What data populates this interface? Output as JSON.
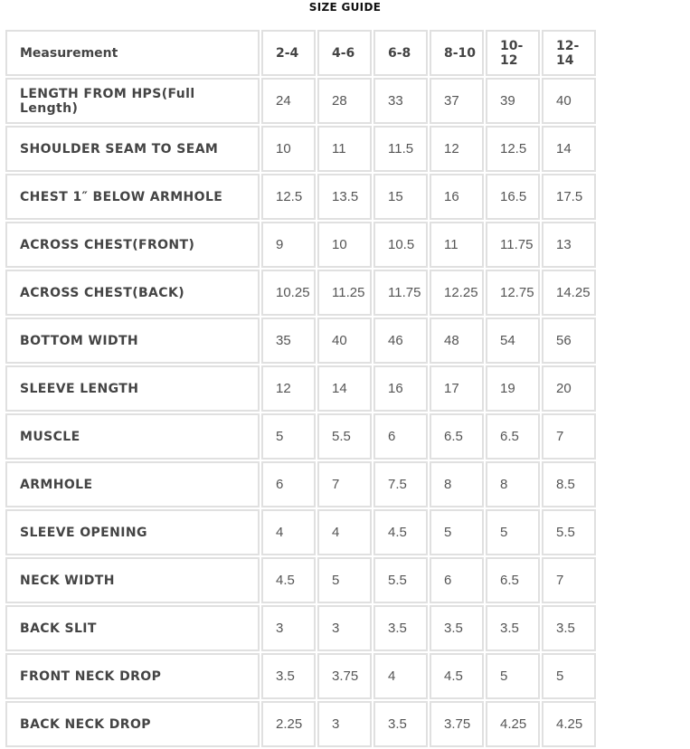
{
  "title": "SIZE GUIDE",
  "headers": [
    "Measurement",
    "2-4",
    "4-6",
    "6-8",
    "8-10",
    "10-12",
    "12-14"
  ],
  "rows": [
    {
      "label": "LENGTH FROM HPS(Full Length)",
      "values": [
        "24",
        "28",
        "33",
        "37",
        "39",
        "40"
      ]
    },
    {
      "label": "SHOULDER SEAM TO SEAM",
      "values": [
        "10",
        "11",
        "11.5",
        "12",
        "12.5",
        "14"
      ]
    },
    {
      "label": "CHEST 1″ BELOW ARMHOLE",
      "values": [
        "12.5",
        "13.5",
        "15",
        "16",
        "16.5",
        "17.5"
      ]
    },
    {
      "label": "ACROSS CHEST(FRONT)",
      "values": [
        "9",
        "10",
        "10.5",
        "11",
        "11.75",
        "13"
      ]
    },
    {
      "label": "ACROSS CHEST(BACK)",
      "values": [
        "10.25",
        "11.25",
        "11.75",
        "12.25",
        "12.75",
        "14.25"
      ]
    },
    {
      "label": "BOTTOM WIDTH",
      "values": [
        "35",
        "40",
        "46",
        "48",
        "54",
        "56"
      ]
    },
    {
      "label": "SLEEVE LENGTH",
      "values": [
        "12",
        "14",
        "16",
        "17",
        "19",
        "20"
      ]
    },
    {
      "label": "MUSCLE",
      "values": [
        "5",
        "5.5",
        "6",
        "6.5",
        "6.5",
        "7"
      ]
    },
    {
      "label": "ARMHOLE",
      "values": [
        "6",
        "7",
        "7.5",
        "8",
        "8",
        "8.5"
      ]
    },
    {
      "label": "SLEEVE OPENING",
      "values": [
        "4",
        "4",
        "4.5",
        "5",
        "5",
        "5.5"
      ]
    },
    {
      "label": "NECK WIDTH",
      "values": [
        "4.5",
        "5",
        "5.5",
        "6",
        "6.5",
        "7"
      ]
    },
    {
      "label": "BACK SLIT",
      "values": [
        "3",
        "3",
        "3.5",
        "3.5",
        "3.5",
        "3.5"
      ]
    },
    {
      "label": "FRONT NECK DROP",
      "values": [
        "3.5",
        "3.75",
        "4",
        "4.5",
        "5",
        "5"
      ]
    },
    {
      "label": "BACK NECK DROP",
      "values": [
        "2.25",
        "3",
        "3.5",
        "3.75",
        "4.25",
        "4.25"
      ]
    }
  ]
}
